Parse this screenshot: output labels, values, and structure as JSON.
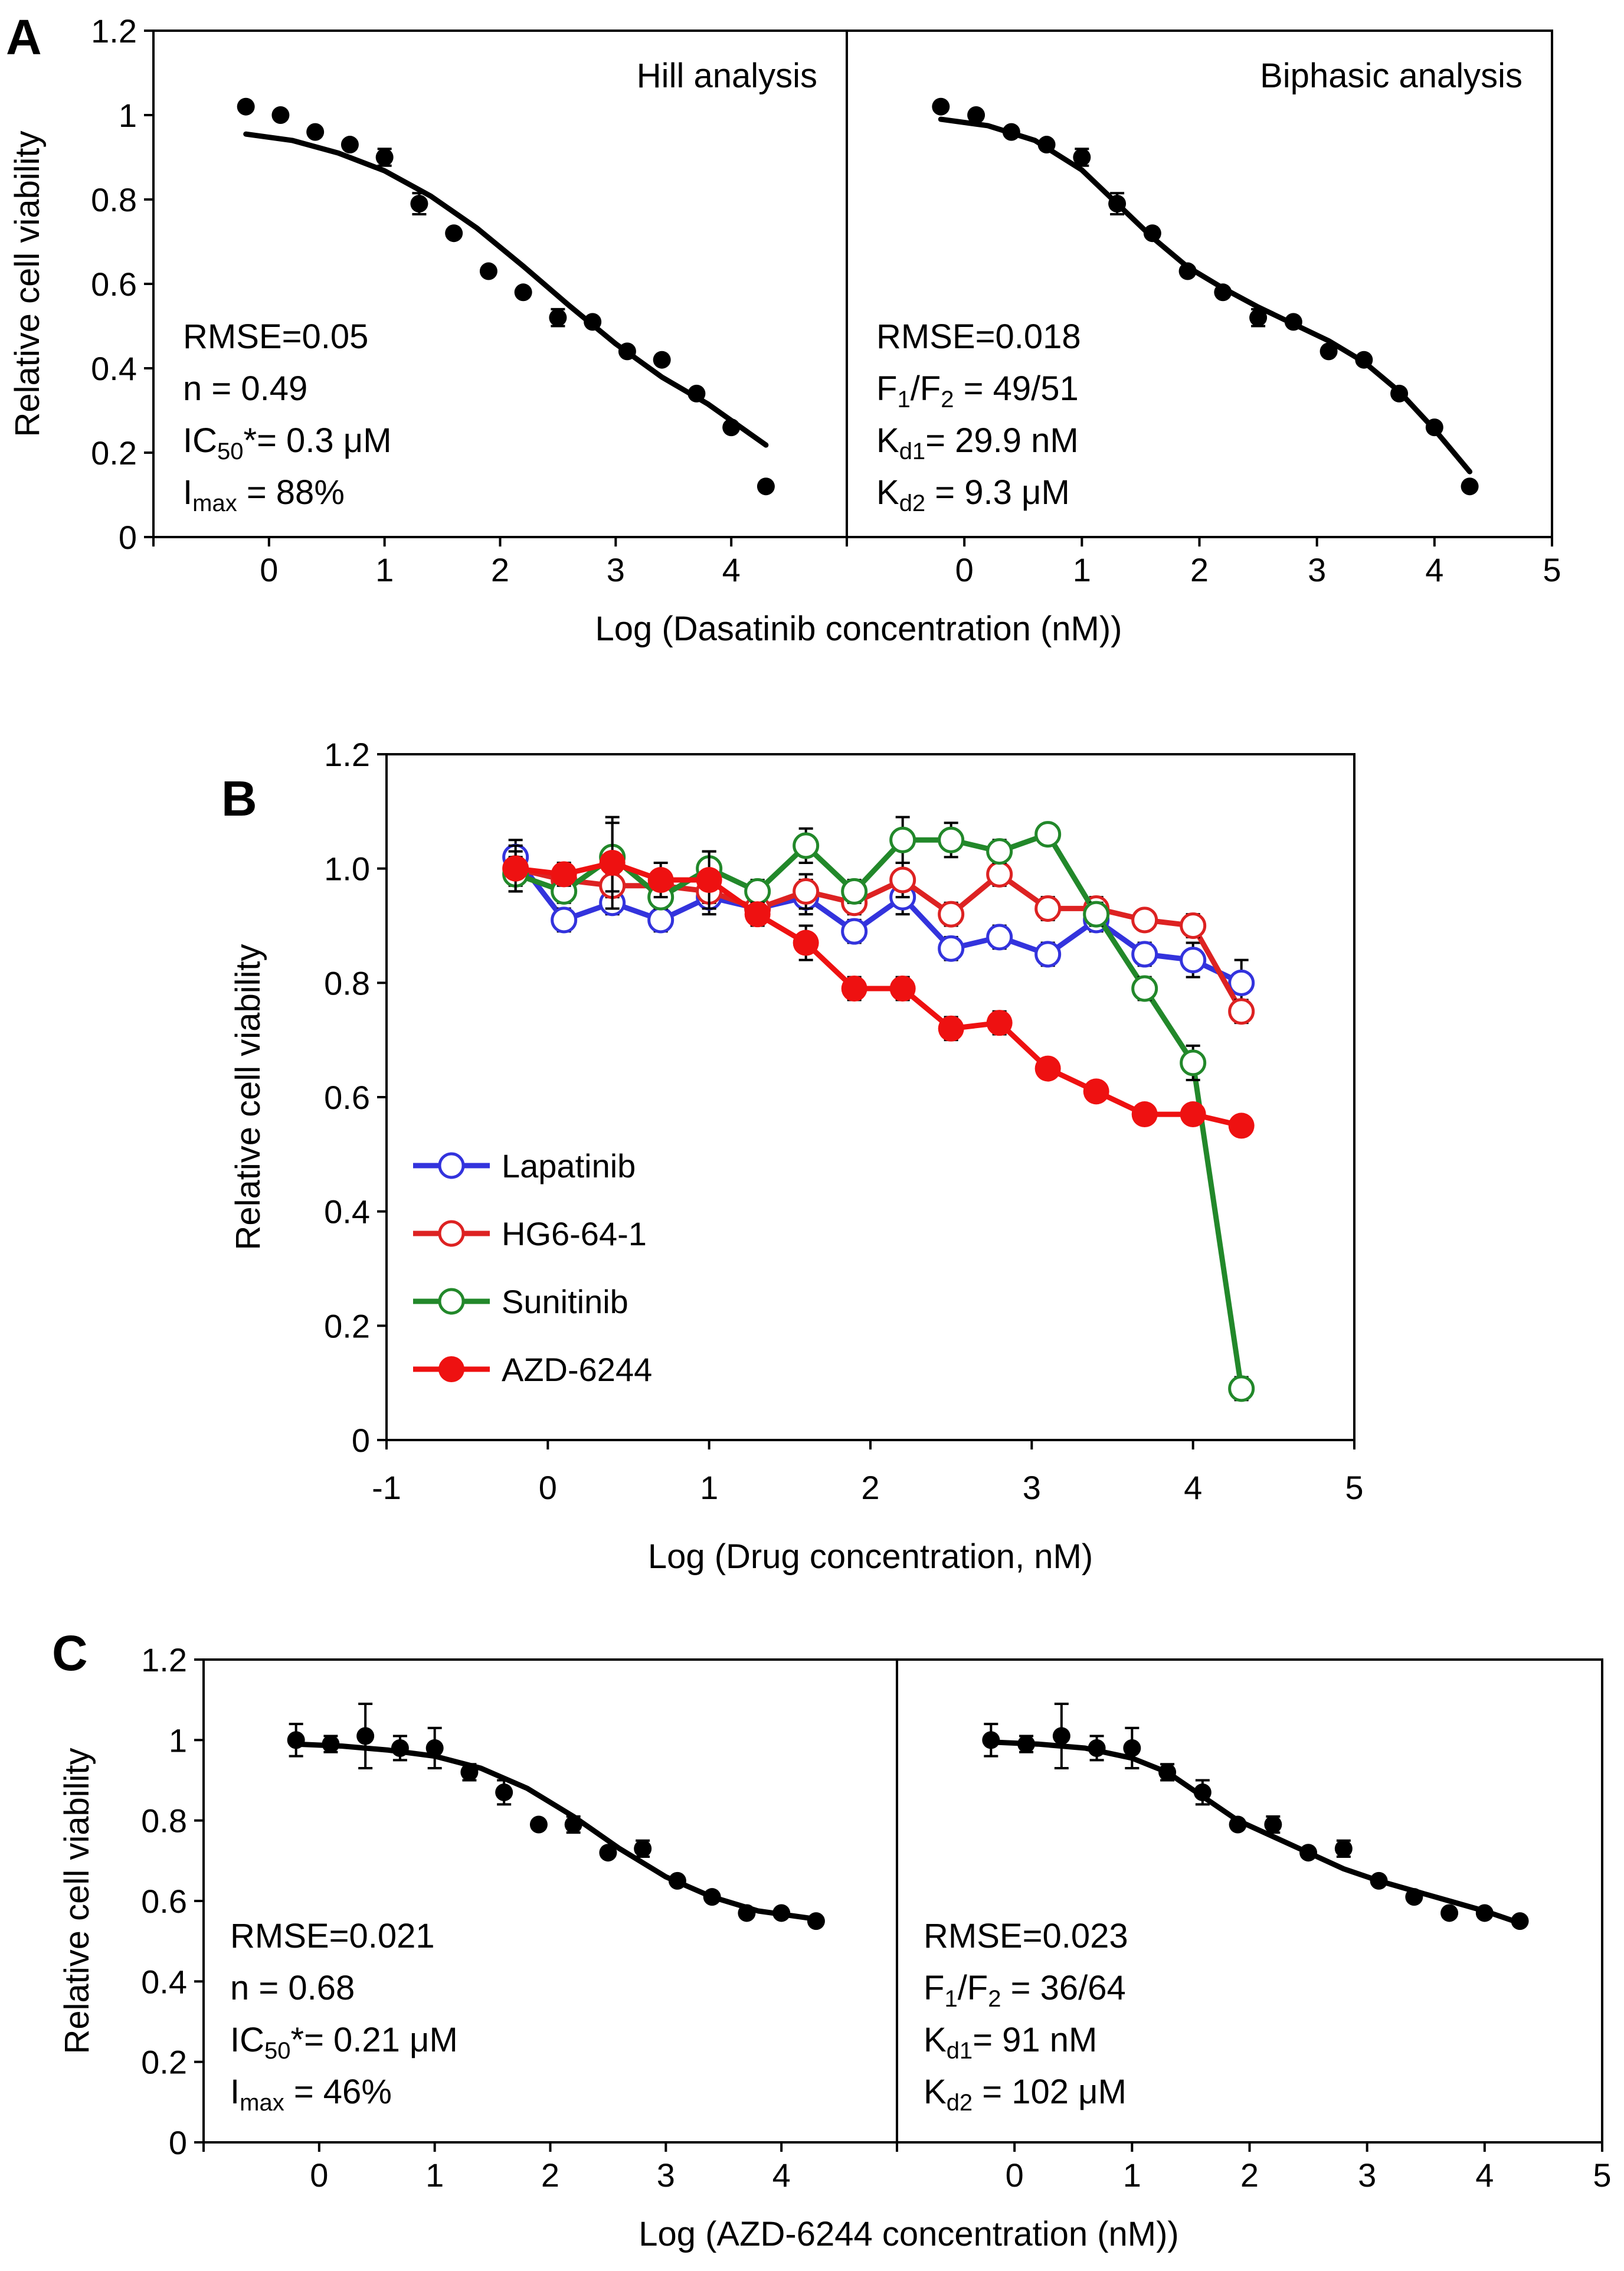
{
  "chart_data": [
    {
      "panel": "A",
      "type": "scatter",
      "ylabel": "Relative cell viability",
      "xlabel": "Log (Dasatinib concentration (nM))",
      "ylim": [
        0,
        1.2
      ],
      "yticks": [
        "0",
        "0.2",
        "0.4",
        "0.6",
        "0.8",
        "1",
        "1.2"
      ],
      "subplots": [
        {
          "title": "Hill analysis",
          "xlim": [
            -1,
            5
          ],
          "xticks": [
            "0",
            "1",
            "2",
            "3",
            "4"
          ],
          "points": {
            "x": [
              -0.2,
              0.1,
              0.4,
              0.7,
              1.0,
              1.3,
              1.6,
              1.9,
              2.2,
              2.5,
              2.8,
              3.1,
              3.4,
              3.7,
              4.0,
              4.3
            ],
            "y": [
              1.02,
              1.0,
              0.96,
              0.93,
              0.9,
              0.79,
              0.72,
              0.63,
              0.58,
              0.52,
              0.51,
              0.44,
              0.42,
              0.34,
              0.26,
              0.12
            ],
            "err": [
              0.0,
              0.0,
              0.0,
              0.0,
              0.02,
              0.025,
              0.0,
              0.0,
              0.0,
              0.02,
              0.0,
              0.0,
              0.0,
              0.0,
              0.0,
              0.0
            ]
          },
          "fit": {
            "model": "hill",
            "x": [
              -0.2,
              0.2,
              0.6,
              1.0,
              1.4,
              1.8,
              2.2,
              2.6,
              3.0,
              3.4,
              3.8,
              4.3
            ],
            "y": [
              0.955,
              0.94,
              0.91,
              0.868,
              0.808,
              0.732,
              0.642,
              0.548,
              0.458,
              0.379,
              0.315,
              0.218
            ]
          },
          "annotations": [
            {
              "base": "RMSE=0.05"
            },
            {
              "base": "n = 0.49"
            },
            {
              "base": "IC",
              "sub": "50",
              "rest": "*= 0.3 μM"
            },
            {
              "base": "I",
              "sub": "max",
              "rest": " = 88%"
            }
          ]
        },
        {
          "title": "Biphasic analysis",
          "xlim": [
            -1,
            5
          ],
          "xticks": [
            "0",
            "1",
            "2",
            "3",
            "4",
            "5"
          ],
          "points": {
            "x": [
              -0.2,
              0.1,
              0.4,
              0.7,
              1.0,
              1.3,
              1.6,
              1.9,
              2.2,
              2.5,
              2.8,
              3.1,
              3.4,
              3.7,
              4.0,
              4.3
            ],
            "y": [
              1.02,
              1.0,
              0.96,
              0.93,
              0.9,
              0.79,
              0.72,
              0.63,
              0.58,
              0.52,
              0.51,
              0.44,
              0.42,
              0.34,
              0.26,
              0.12
            ],
            "err": [
              0.0,
              0.0,
              0.0,
              0.0,
              0.02,
              0.025,
              0.0,
              0.0,
              0.0,
              0.02,
              0.0,
              0.0,
              0.0,
              0.0,
              0.0,
              0.0
            ]
          },
          "fit": {
            "model": "biphasic",
            "x": [
              -0.2,
              0.2,
              0.6,
              1.0,
              1.3,
              1.6,
              1.9,
              2.2,
              2.5,
              2.8,
              3.1,
              3.4,
              3.7,
              4.0,
              4.3
            ],
            "y": [
              0.99,
              0.975,
              0.94,
              0.87,
              0.79,
              0.71,
              0.64,
              0.59,
              0.545,
              0.505,
              0.465,
              0.415,
              0.345,
              0.255,
              0.155
            ]
          },
          "annotations": [
            {
              "base": "RMSE=0.018"
            },
            {
              "base": "F",
              "sub": "1",
              "rest": "/F",
              "sub2": "2",
              "rest2": " = 49/51"
            },
            {
              "base": "K",
              "sub": "d1",
              "rest": "= 29.9 nM"
            },
            {
              "base": "K",
              "sub": "d2",
              "rest": " = 9.3 μM"
            }
          ]
        }
      ]
    },
    {
      "panel": "B",
      "type": "line",
      "ylabel": "Relative cell viability",
      "xlabel": "Log (Drug concentration, nM)",
      "ylim": [
        0,
        1.2
      ],
      "xlim": [
        -1,
        5
      ],
      "yticks": [
        "0",
        "0.2",
        "0.4",
        "0.6",
        "0.8",
        "1.0",
        "1.2"
      ],
      "xticks": [
        "-1",
        "0",
        "1",
        "2",
        "3",
        "4",
        "5"
      ],
      "x": [
        -0.2,
        0.1,
        0.4,
        0.7,
        1.0,
        1.3,
        1.6,
        1.9,
        2.2,
        2.5,
        2.8,
        3.1,
        3.4,
        3.7,
        4.0,
        4.3
      ],
      "series": [
        {
          "name": "Lapatinib",
          "color": "#3333dd",
          "marker": "open",
          "values": [
            1.02,
            0.91,
            0.94,
            0.91,
            0.95,
            0.93,
            0.95,
            0.89,
            0.95,
            0.86,
            0.88,
            0.85,
            0.91,
            0.85,
            0.84,
            0.8
          ],
          "err": [
            0.03,
            0.02,
            0.02,
            0.02,
            0.03,
            0.02,
            0.03,
            0.02,
            0.03,
            0.02,
            0.02,
            0.02,
            0.02,
            0.02,
            0.03,
            0.04
          ]
        },
        {
          "name": "HG6-64-1",
          "color": "#dd2222",
          "marker": "open",
          "values": [
            1.0,
            0.98,
            0.97,
            0.97,
            0.96,
            0.93,
            0.96,
            0.94,
            0.98,
            0.92,
            0.99,
            0.93,
            0.93,
            0.91,
            0.9,
            0.75
          ],
          "err": [
            0.03,
            0.02,
            0.02,
            0.02,
            0.02,
            0.02,
            0.03,
            0.02,
            0.03,
            0.02,
            0.02,
            0.02,
            0.02,
            0.01,
            0.02,
            0.02
          ]
        },
        {
          "name": "Sunitinib",
          "color": "#22882a",
          "marker": "open",
          "values": [
            0.99,
            0.96,
            1.02,
            0.95,
            1.0,
            0.96,
            1.04,
            0.96,
            1.05,
            1.05,
            1.03,
            1.06,
            0.92,
            0.79,
            0.66,
            0.09
          ],
          "err": [
            0.03,
            0.02,
            0.06,
            0.02,
            0.03,
            0.02,
            0.03,
            0.02,
            0.04,
            0.03,
            0.02,
            0.01,
            0.02,
            0.02,
            0.03,
            0.02
          ]
        },
        {
          "name": "AZD-6244",
          "color": "#ee1111",
          "marker": "filled",
          "values": [
            1.0,
            0.99,
            1.01,
            0.98,
            0.98,
            0.92,
            0.87,
            0.79,
            0.79,
            0.72,
            0.73,
            0.65,
            0.61,
            0.57,
            0.57,
            0.55
          ],
          "err": [
            0.04,
            0.02,
            0.08,
            0.03,
            0.05,
            0.02,
            0.03,
            0.02,
            0.02,
            0.02,
            0.02,
            0.01,
            0.01,
            0.01,
            0.01,
            0.01
          ]
        }
      ],
      "legend_position": "lower-left"
    },
    {
      "panel": "C",
      "type": "scatter",
      "ylabel": "Relative cell viability",
      "xlabel": "Log (AZD-6244 concentration (nM))",
      "ylim": [
        0,
        1.2
      ],
      "yticks": [
        "0",
        "0.2",
        "0.4",
        "0.6",
        "0.8",
        "1",
        "1.2"
      ],
      "subplots": [
        {
          "title": "",
          "xlim": [
            -1,
            5
          ],
          "xticks": [
            "0",
            "1",
            "2",
            "3",
            "4"
          ],
          "points": {
            "x": [
              -0.2,
              0.1,
              0.4,
              0.7,
              1.0,
              1.3,
              1.6,
              1.9,
              2.2,
              2.5,
              2.8,
              3.1,
              3.4,
              3.7,
              4.0,
              4.3
            ],
            "y": [
              1.0,
              0.99,
              1.01,
              0.98,
              0.98,
              0.92,
              0.87,
              0.79,
              0.79,
              0.72,
              0.73,
              0.65,
              0.61,
              0.57,
              0.57,
              0.55
            ],
            "err": [
              0.04,
              0.02,
              0.08,
              0.03,
              0.05,
              0.02,
              0.03,
              0.0,
              0.02,
              0.0,
              0.02,
              0.0,
              0.0,
              0.0,
              0.0,
              0.0
            ]
          },
          "fit": {
            "model": "hill",
            "x": [
              -0.2,
              0.2,
              0.6,
              1.0,
              1.4,
              1.8,
              2.2,
              2.6,
              3.0,
              3.4,
              3.8,
              4.3
            ],
            "y": [
              0.99,
              0.985,
              0.975,
              0.96,
              0.93,
              0.88,
              0.81,
              0.73,
              0.66,
              0.61,
              0.575,
              0.555
            ]
          },
          "annotations": [
            {
              "base": "RMSE=0.021"
            },
            {
              "base": "n = 0.68"
            },
            {
              "base": "IC",
              "sub": "50",
              "rest": "*= 0.21 μM"
            },
            {
              "base": "I",
              "sub": "max",
              "rest": " = 46%"
            }
          ]
        },
        {
          "title": "",
          "xlim": [
            -1,
            5
          ],
          "xticks": [
            "0",
            "1",
            "2",
            "3",
            "4",
            "5"
          ],
          "points": {
            "x": [
              -0.2,
              0.1,
              0.4,
              0.7,
              1.0,
              1.3,
              1.6,
              1.9,
              2.2,
              2.5,
              2.8,
              3.1,
              3.4,
              3.7,
              4.0,
              4.3
            ],
            "y": [
              1.0,
              0.99,
              1.01,
              0.98,
              0.98,
              0.92,
              0.87,
              0.79,
              0.79,
              0.72,
              0.73,
              0.65,
              0.61,
              0.57,
              0.57,
              0.55
            ],
            "err": [
              0.04,
              0.02,
              0.08,
              0.03,
              0.05,
              0.02,
              0.03,
              0.0,
              0.02,
              0.0,
              0.02,
              0.0,
              0.0,
              0.0,
              0.0,
              0.0
            ]
          },
          "fit": {
            "model": "biphasic",
            "x": [
              -0.2,
              0.2,
              0.6,
              1.0,
              1.3,
              1.6,
              1.9,
              2.2,
              2.5,
              2.8,
              3.1,
              3.4,
              3.7,
              4.0,
              4.3
            ],
            "y": [
              0.995,
              0.99,
              0.98,
              0.955,
              0.92,
              0.86,
              0.8,
              0.76,
              0.72,
              0.68,
              0.65,
              0.625,
              0.6,
              0.575,
              0.545
            ]
          },
          "annotations": [
            {
              "base": "RMSE=0.023"
            },
            {
              "base": "F",
              "sub": "1",
              "rest": "/F",
              "sub2": "2",
              "rest2": " = 36/64"
            },
            {
              "base": "K",
              "sub": "d1",
              "rest": "= 91 nM"
            },
            {
              "base": "K",
              "sub": "d2",
              "rest": " = 102 μM"
            }
          ]
        }
      ]
    }
  ]
}
